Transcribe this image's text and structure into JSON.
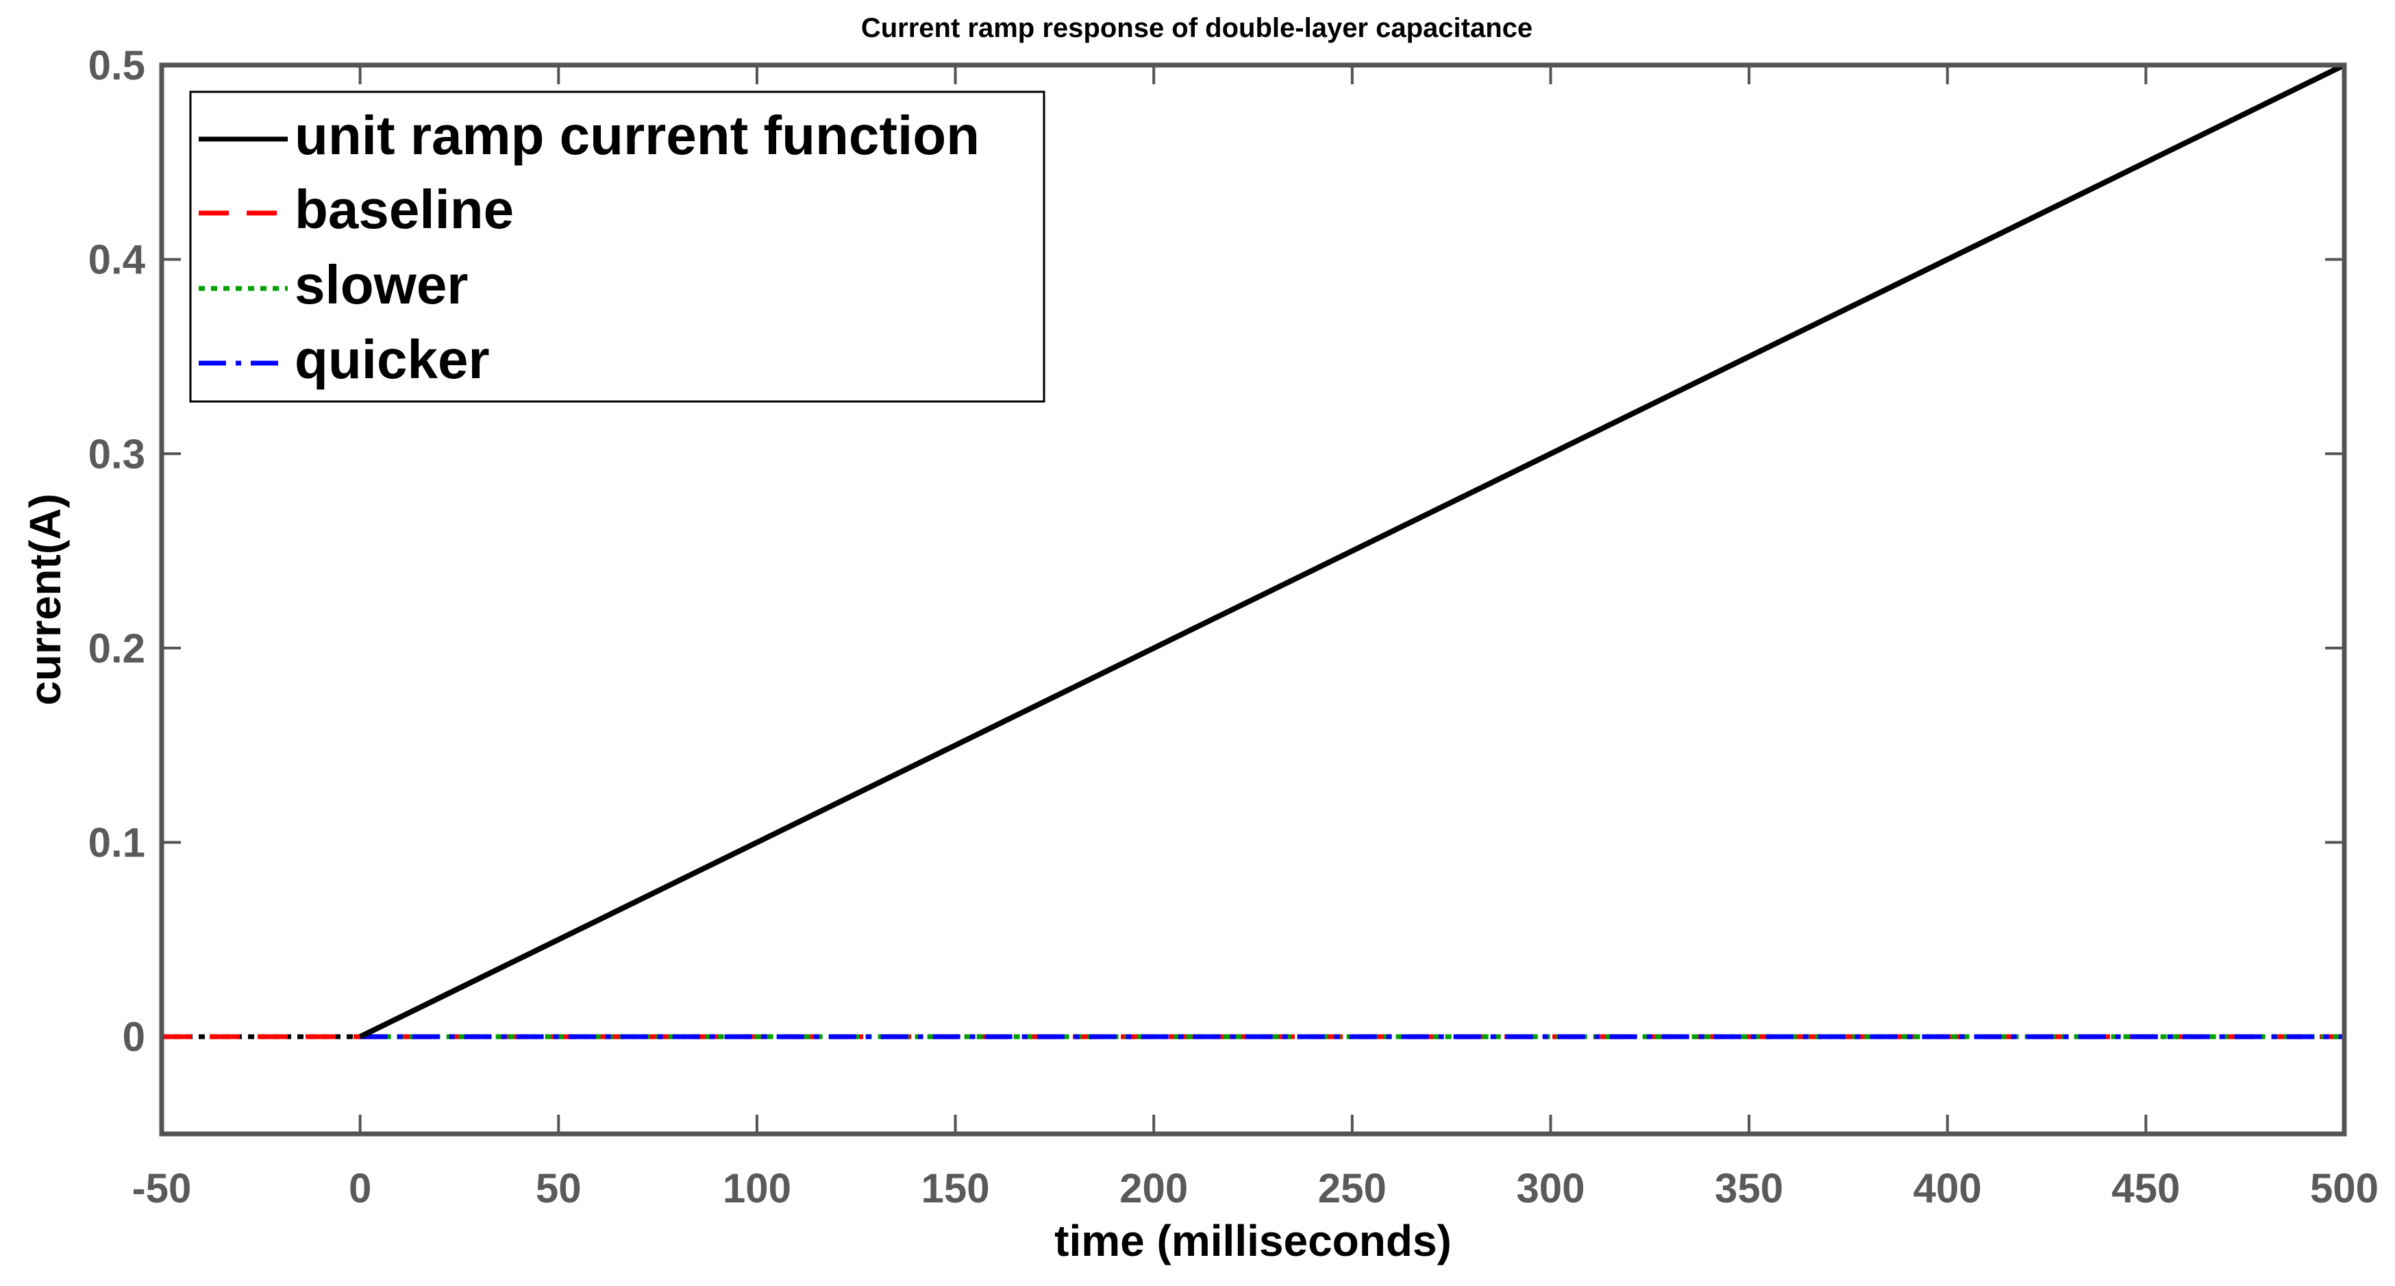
{
  "figure": {
    "title": "Current ramp response of double-layer capacitance",
    "xlabel": "time (milliseconds)",
    "ylabel": "current(A)"
  },
  "colors": {
    "ramp": "#000000",
    "baseline": "#ff0000",
    "slower": "#00a000",
    "quicker": "#0000ff",
    "axis": "#545454",
    "ticklabel": "#5a5a5a",
    "label": "#000000"
  },
  "chart_data": {
    "type": "line",
    "title": "Current ramp response of double-layer capacitance",
    "xlabel": "time (milliseconds)",
    "ylabel": "current(A)",
    "xlim": [
      -50,
      500
    ],
    "ylim": [
      -0.05,
      0.5
    ],
    "xticks": [
      -50,
      0,
      50,
      100,
      150,
      200,
      250,
      300,
      350,
      400,
      450,
      500
    ],
    "xtick_labels": [
      "-50",
      "0",
      "50",
      "100",
      "150",
      "200",
      "250",
      "300",
      "350",
      "400",
      "450",
      "500"
    ],
    "yticks": [
      0,
      0.1,
      0.2,
      0.3,
      0.4,
      0.5
    ],
    "ytick_labels": [
      "0",
      "0.1",
      "0.2",
      "0.3",
      "0.4",
      "0.5"
    ],
    "grid": false,
    "legend_position": "top-left",
    "series": [
      {
        "name": "unit ramp current function",
        "style": "solid",
        "color": "#000000",
        "x": [
          0,
          500
        ],
        "y": [
          0,
          0.5
        ]
      },
      {
        "name": "baseline",
        "style": "dashed",
        "color": "#ff0000",
        "x": [
          -50,
          0,
          500
        ],
        "y": [
          0,
          0,
          0
        ]
      },
      {
        "name": "slower",
        "style": "dotted",
        "color": "#00a000",
        "x": [
          0,
          500
        ],
        "y": [
          0,
          0
        ]
      },
      {
        "name": "quicker",
        "style": "dashdot",
        "color": "#0000ff",
        "x": [
          0,
          500
        ],
        "y": [
          0,
          0
        ]
      }
    ],
    "annotations": [
      {
        "type": "segment",
        "style": "dotted",
        "color": "#000000",
        "x": [
          -50,
          0
        ],
        "y": [
          0,
          0
        ]
      }
    ]
  }
}
